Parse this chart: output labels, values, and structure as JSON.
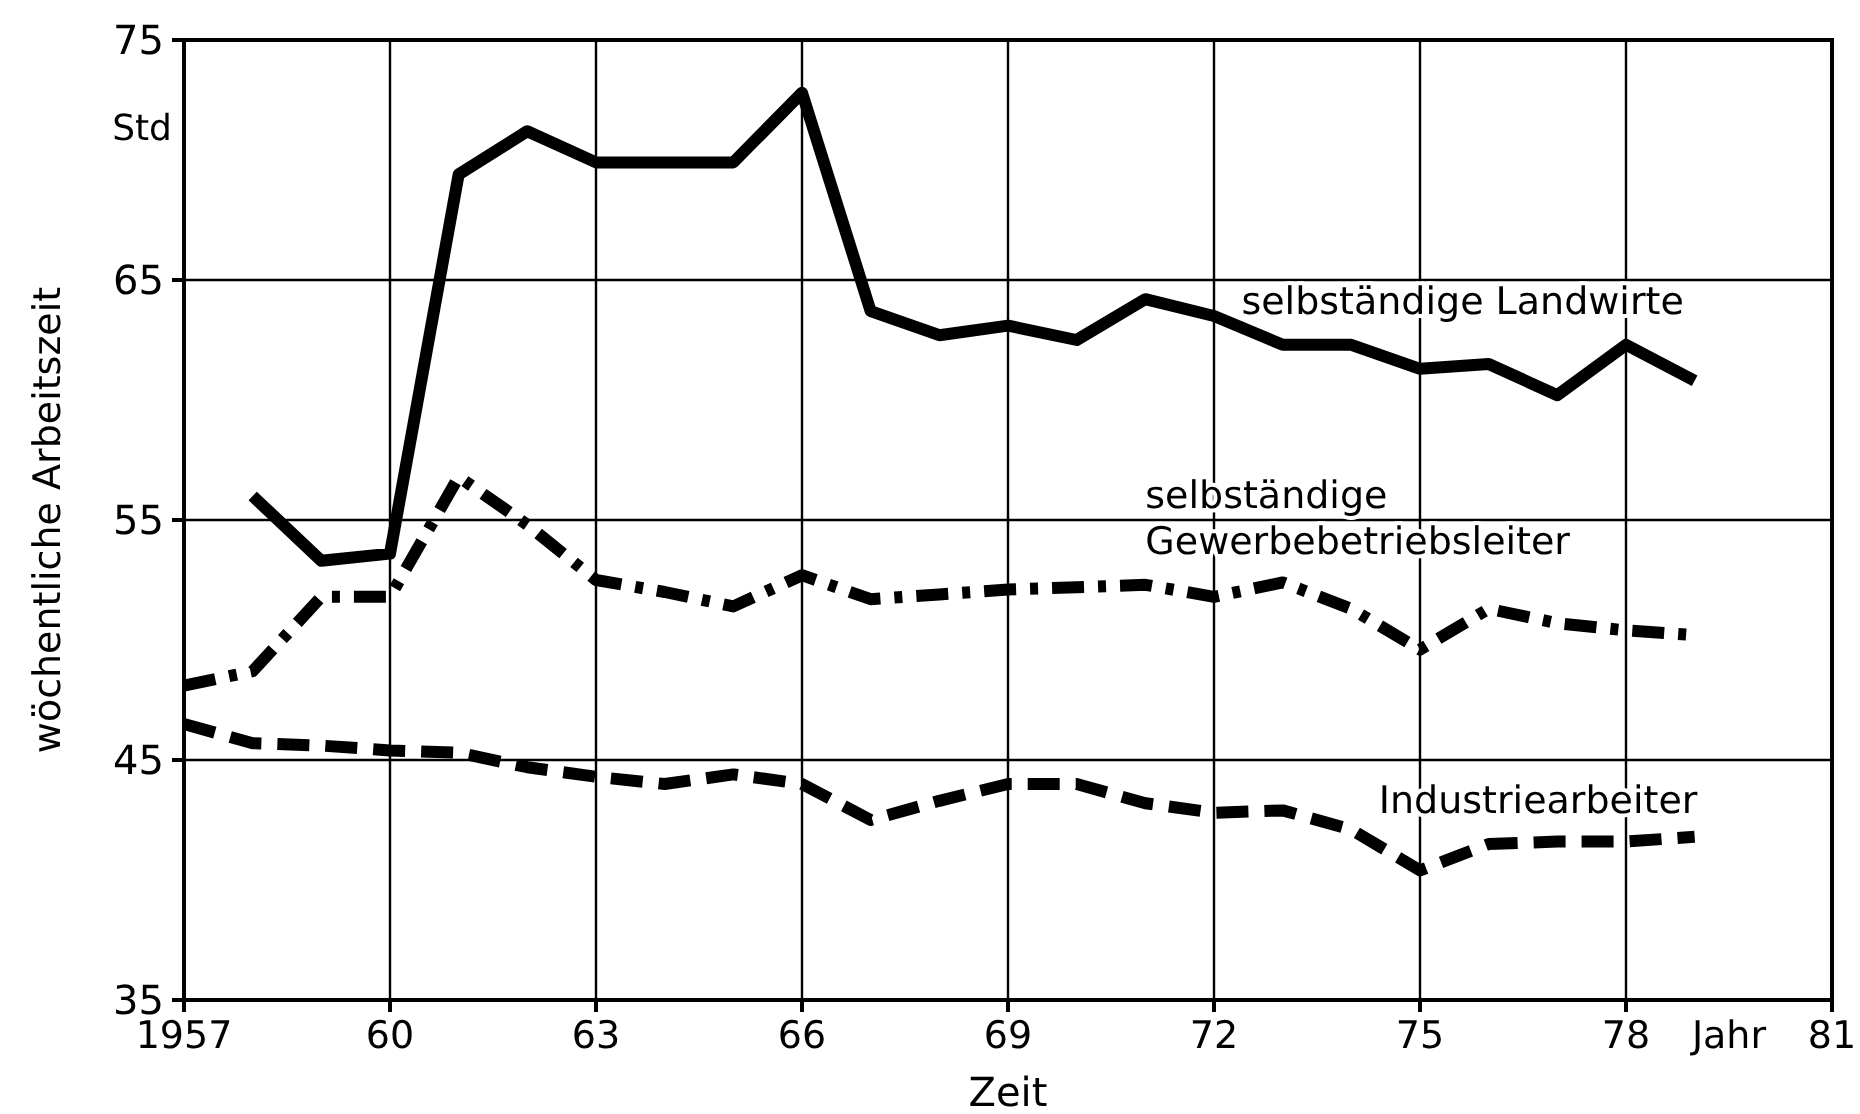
{
  "chart_data": {
    "type": "line",
    "xlabel": "Zeit",
    "ylabel": "wöchentliche Arbeitszeit",
    "annotations": [
      "Std",
      "Jahr"
    ],
    "xlim": [
      1957,
      1981
    ],
    "xticks": [
      {
        "value": 1957,
        "label": "1957"
      },
      {
        "value": 1960,
        "label": "60"
      },
      {
        "value": 1963,
        "label": "63"
      },
      {
        "value": 1966,
        "label": "66"
      },
      {
        "value": 1969,
        "label": "69"
      },
      {
        "value": 1972,
        "label": "72"
      },
      {
        "value": 1975,
        "label": "75"
      },
      {
        "value": 1978,
        "label": "78"
      },
      {
        "value": 1981,
        "label": "81"
      }
    ],
    "ylim": [
      35,
      75
    ],
    "yticks": [
      35,
      45,
      55,
      65,
      75
    ],
    "grid": true,
    "marker": "none",
    "series": [
      {
        "name": "selbständige Landwirte",
        "color": "#000000",
        "line_style": "solid",
        "x": [
          1958,
          1959,
          1960,
          1961,
          1962,
          1963,
          1964,
          1965,
          1966,
          1967,
          1968,
          1969,
          1970,
          1971,
          1972,
          1973,
          1974,
          1975,
          1976,
          1977,
          1978,
          1979
        ],
        "values": [
          56.0,
          53.3,
          53.6,
          69.4,
          71.2,
          69.9,
          69.9,
          69.9,
          72.8,
          63.7,
          62.7,
          63.1,
          62.5,
          64.2,
          63.5,
          62.3,
          62.3,
          61.3,
          61.5,
          60.2,
          62.3,
          60.8
        ]
      },
      {
        "name": "selbständige Gewerbebetriebsleiter",
        "color": "#000000",
        "line_style": "dashdot",
        "x": [
          1957,
          1958,
          1959,
          1960,
          1961,
          1962,
          1963,
          1964,
          1965,
          1966,
          1967,
          1968,
          1969,
          1970,
          1971,
          1972,
          1973,
          1974,
          1975,
          1976,
          1977,
          1978,
          1979
        ],
        "values": [
          48.1,
          48.7,
          51.8,
          51.8,
          56.8,
          54.8,
          52.5,
          52.0,
          51.4,
          52.7,
          51.7,
          51.9,
          52.1,
          52.2,
          52.3,
          51.8,
          52.4,
          51.3,
          49.6,
          51.3,
          50.7,
          50.4,
          50.2
        ]
      },
      {
        "name": "Industriearbeiter",
        "color": "#000000",
        "line_style": "dashed",
        "x": [
          1957,
          1958,
          1959,
          1960,
          1961,
          1962,
          1963,
          1964,
          1965,
          1966,
          1967,
          1968,
          1969,
          1970,
          1971,
          1972,
          1973,
          1974,
          1975,
          1976,
          1977,
          1978,
          1979
        ],
        "values": [
          46.5,
          45.7,
          45.6,
          45.4,
          45.3,
          44.7,
          44.3,
          44.0,
          44.4,
          44.0,
          42.5,
          43.3,
          44.0,
          44.0,
          43.2,
          42.8,
          42.9,
          42.1,
          40.4,
          41.5,
          41.6,
          41.6,
          41.8
        ]
      }
    ]
  }
}
